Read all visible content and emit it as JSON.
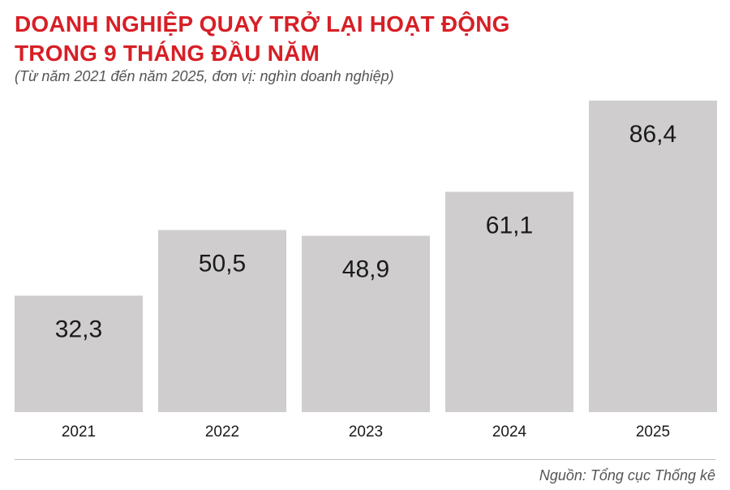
{
  "chart_data": {
    "type": "bar",
    "title": "DOANH NGHIỆP QUAY TRỞ LẠI HOẠT ĐỘNG",
    "title_line2": "TRONG 9 THÁNG ĐẦU NĂM",
    "subtitle": "(Từ năm 2021 đến năm 2025, đơn vị: nghìn doanh nghiệp)",
    "categories": [
      "2021",
      "2022",
      "2023",
      "2024",
      "2025"
    ],
    "values": [
      32.3,
      50.5,
      48.9,
      61.1,
      86.4
    ],
    "value_labels": [
      "32,3",
      "50,5",
      "48,9",
      "61,1",
      "86,4"
    ],
    "xlabel": "",
    "ylabel": "",
    "ylim": [
      0,
      86.4
    ],
    "grid": false,
    "bar_color": "#cfcdcd",
    "title_color": "#d71f26"
  },
  "source": "Nguồn: Tổng cục Thống kê"
}
